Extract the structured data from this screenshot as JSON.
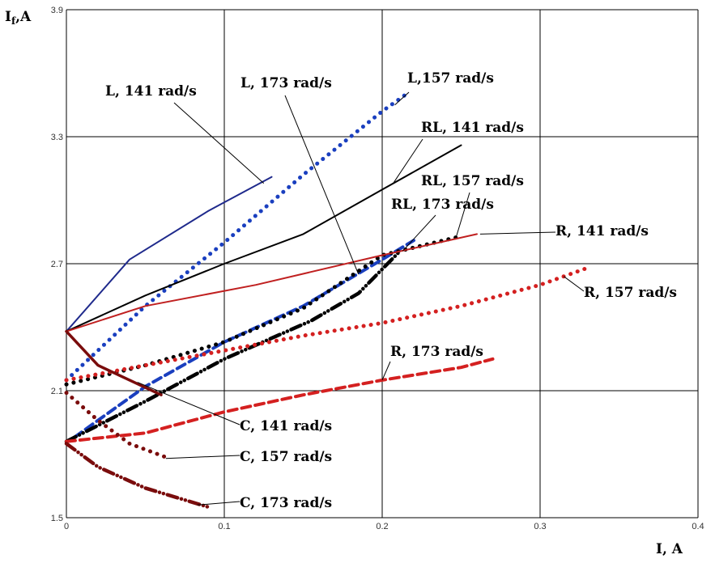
{
  "chart_data": {
    "type": "line",
    "title": "",
    "xlabel": "I, A",
    "ylabel_main": "I",
    "ylabel_sub": "f",
    "ylabel_rest": ",A",
    "xlim": [
      0,
      0.4
    ],
    "ylim": [
      1.5,
      3.9
    ],
    "xticks": [
      "0",
      "0.1",
      "0.2",
      "0.3",
      "0.4"
    ],
    "yticks": [
      "1.5",
      "2.1",
      "2.7",
      "3.3",
      "3.9"
    ],
    "grid": true,
    "series": [
      {
        "name": "L, 141 rad/s",
        "color": "#1f2a8c",
        "style": "solid",
        "x": [
          0,
          0.04,
          0.09,
          0.13
        ],
        "y": [
          2.38,
          2.72,
          2.95,
          3.11
        ]
      },
      {
        "name": "L,157 rad/s",
        "color": "#1a3fbf",
        "style": "dotted",
        "x": [
          0,
          0.05,
          0.1,
          0.15,
          0.2,
          0.215
        ],
        "y": [
          2.15,
          2.5,
          2.8,
          3.12,
          3.42,
          3.5
        ]
      },
      {
        "name": "L, 173 rad/s",
        "color": "#1a3fbf",
        "style": "dashed",
        "x": [
          0.005,
          0.05,
          0.1,
          0.15,
          0.2,
          0.22
        ],
        "y": [
          1.88,
          2.12,
          2.33,
          2.5,
          2.72,
          2.81
        ]
      },
      {
        "name": "RL, 141 rad/s",
        "color": "#000000",
        "style": "solid",
        "x": [
          0,
          0.05,
          0.1,
          0.15,
          0.2,
          0.25
        ],
        "y": [
          2.38,
          2.55,
          2.7,
          2.84,
          3.05,
          3.26
        ]
      },
      {
        "name": "RL, 157 rad/s",
        "color": "#000000",
        "style": "dotted",
        "x": [
          0,
          0.05,
          0.1,
          0.15,
          0.2,
          0.25
        ],
        "y": [
          2.13,
          2.22,
          2.33,
          2.49,
          2.74,
          2.83
        ]
      },
      {
        "name": "RL, 173 rad/s",
        "color": "#000000",
        "style": "dashdot",
        "x": [
          0,
          0.05,
          0.1,
          0.155,
          0.185,
          0.21
        ],
        "y": [
          1.86,
          2.05,
          2.25,
          2.43,
          2.56,
          2.75
        ]
      },
      {
        "name": "R, 141 rad/s",
        "color": "#c02020",
        "style": "solid",
        "x": [
          0,
          0.05,
          0.12,
          0.2,
          0.26
        ],
        "y": [
          2.38,
          2.5,
          2.6,
          2.74,
          2.84
        ]
      },
      {
        "name": "R, 157 rad/s",
        "color": "#d42020",
        "style": "dotted",
        "x": [
          0,
          0.05,
          0.1,
          0.15,
          0.2,
          0.25,
          0.3,
          0.33
        ],
        "y": [
          2.15,
          2.22,
          2.29,
          2.36,
          2.42,
          2.5,
          2.6,
          2.68
        ]
      },
      {
        "name": "R, 173 rad/s",
        "color": "#d42020",
        "style": "dashed",
        "x": [
          0,
          0.05,
          0.1,
          0.15,
          0.2,
          0.25,
          0.27
        ],
        "y": [
          1.86,
          1.9,
          2.0,
          2.08,
          2.15,
          2.21,
          2.25
        ]
      },
      {
        "name": "C, 141 rad/s",
        "color": "#7a0c0c",
        "style": "solid",
        "x": [
          0,
          0.02,
          0.04,
          0.06
        ],
        "y": [
          2.38,
          2.22,
          2.15,
          2.08
        ]
      },
      {
        "name": "C, 157 rad/s",
        "color": "#7a0c0c",
        "style": "dotted",
        "x": [
          0,
          0.02,
          0.04,
          0.065
        ],
        "y": [
          2.09,
          1.96,
          1.85,
          1.78
        ]
      },
      {
        "name": "C, 173 rad/s",
        "color": "#7a0c0c",
        "style": "dashdot",
        "x": [
          0,
          0.02,
          0.05,
          0.09
        ],
        "y": [
          1.85,
          1.74,
          1.64,
          1.55
        ]
      }
    ],
    "annotations": [
      {
        "text": "L, 141 rad/s",
        "series": 0
      },
      {
        "text": "L,157 rad/s",
        "series": 1
      },
      {
        "text": "L, 173 rad/s",
        "series": 2
      },
      {
        "text": "RL, 141 rad/s",
        "series": 3
      },
      {
        "text": "RL, 157 rad/s",
        "series": 4
      },
      {
        "text": "RL, 173 rad/s",
        "series": 5
      },
      {
        "text": "R, 141 rad/s",
        "series": 6
      },
      {
        "text": "R, 157 rad/s",
        "series": 7
      },
      {
        "text": "R, 173 rad/s",
        "series": 8
      },
      {
        "text": "C, 141 rad/s",
        "series": 9
      },
      {
        "text": "C, 157 rad/s",
        "series": 10
      },
      {
        "text": "C, 173 rad/s",
        "series": 11
      }
    ]
  }
}
